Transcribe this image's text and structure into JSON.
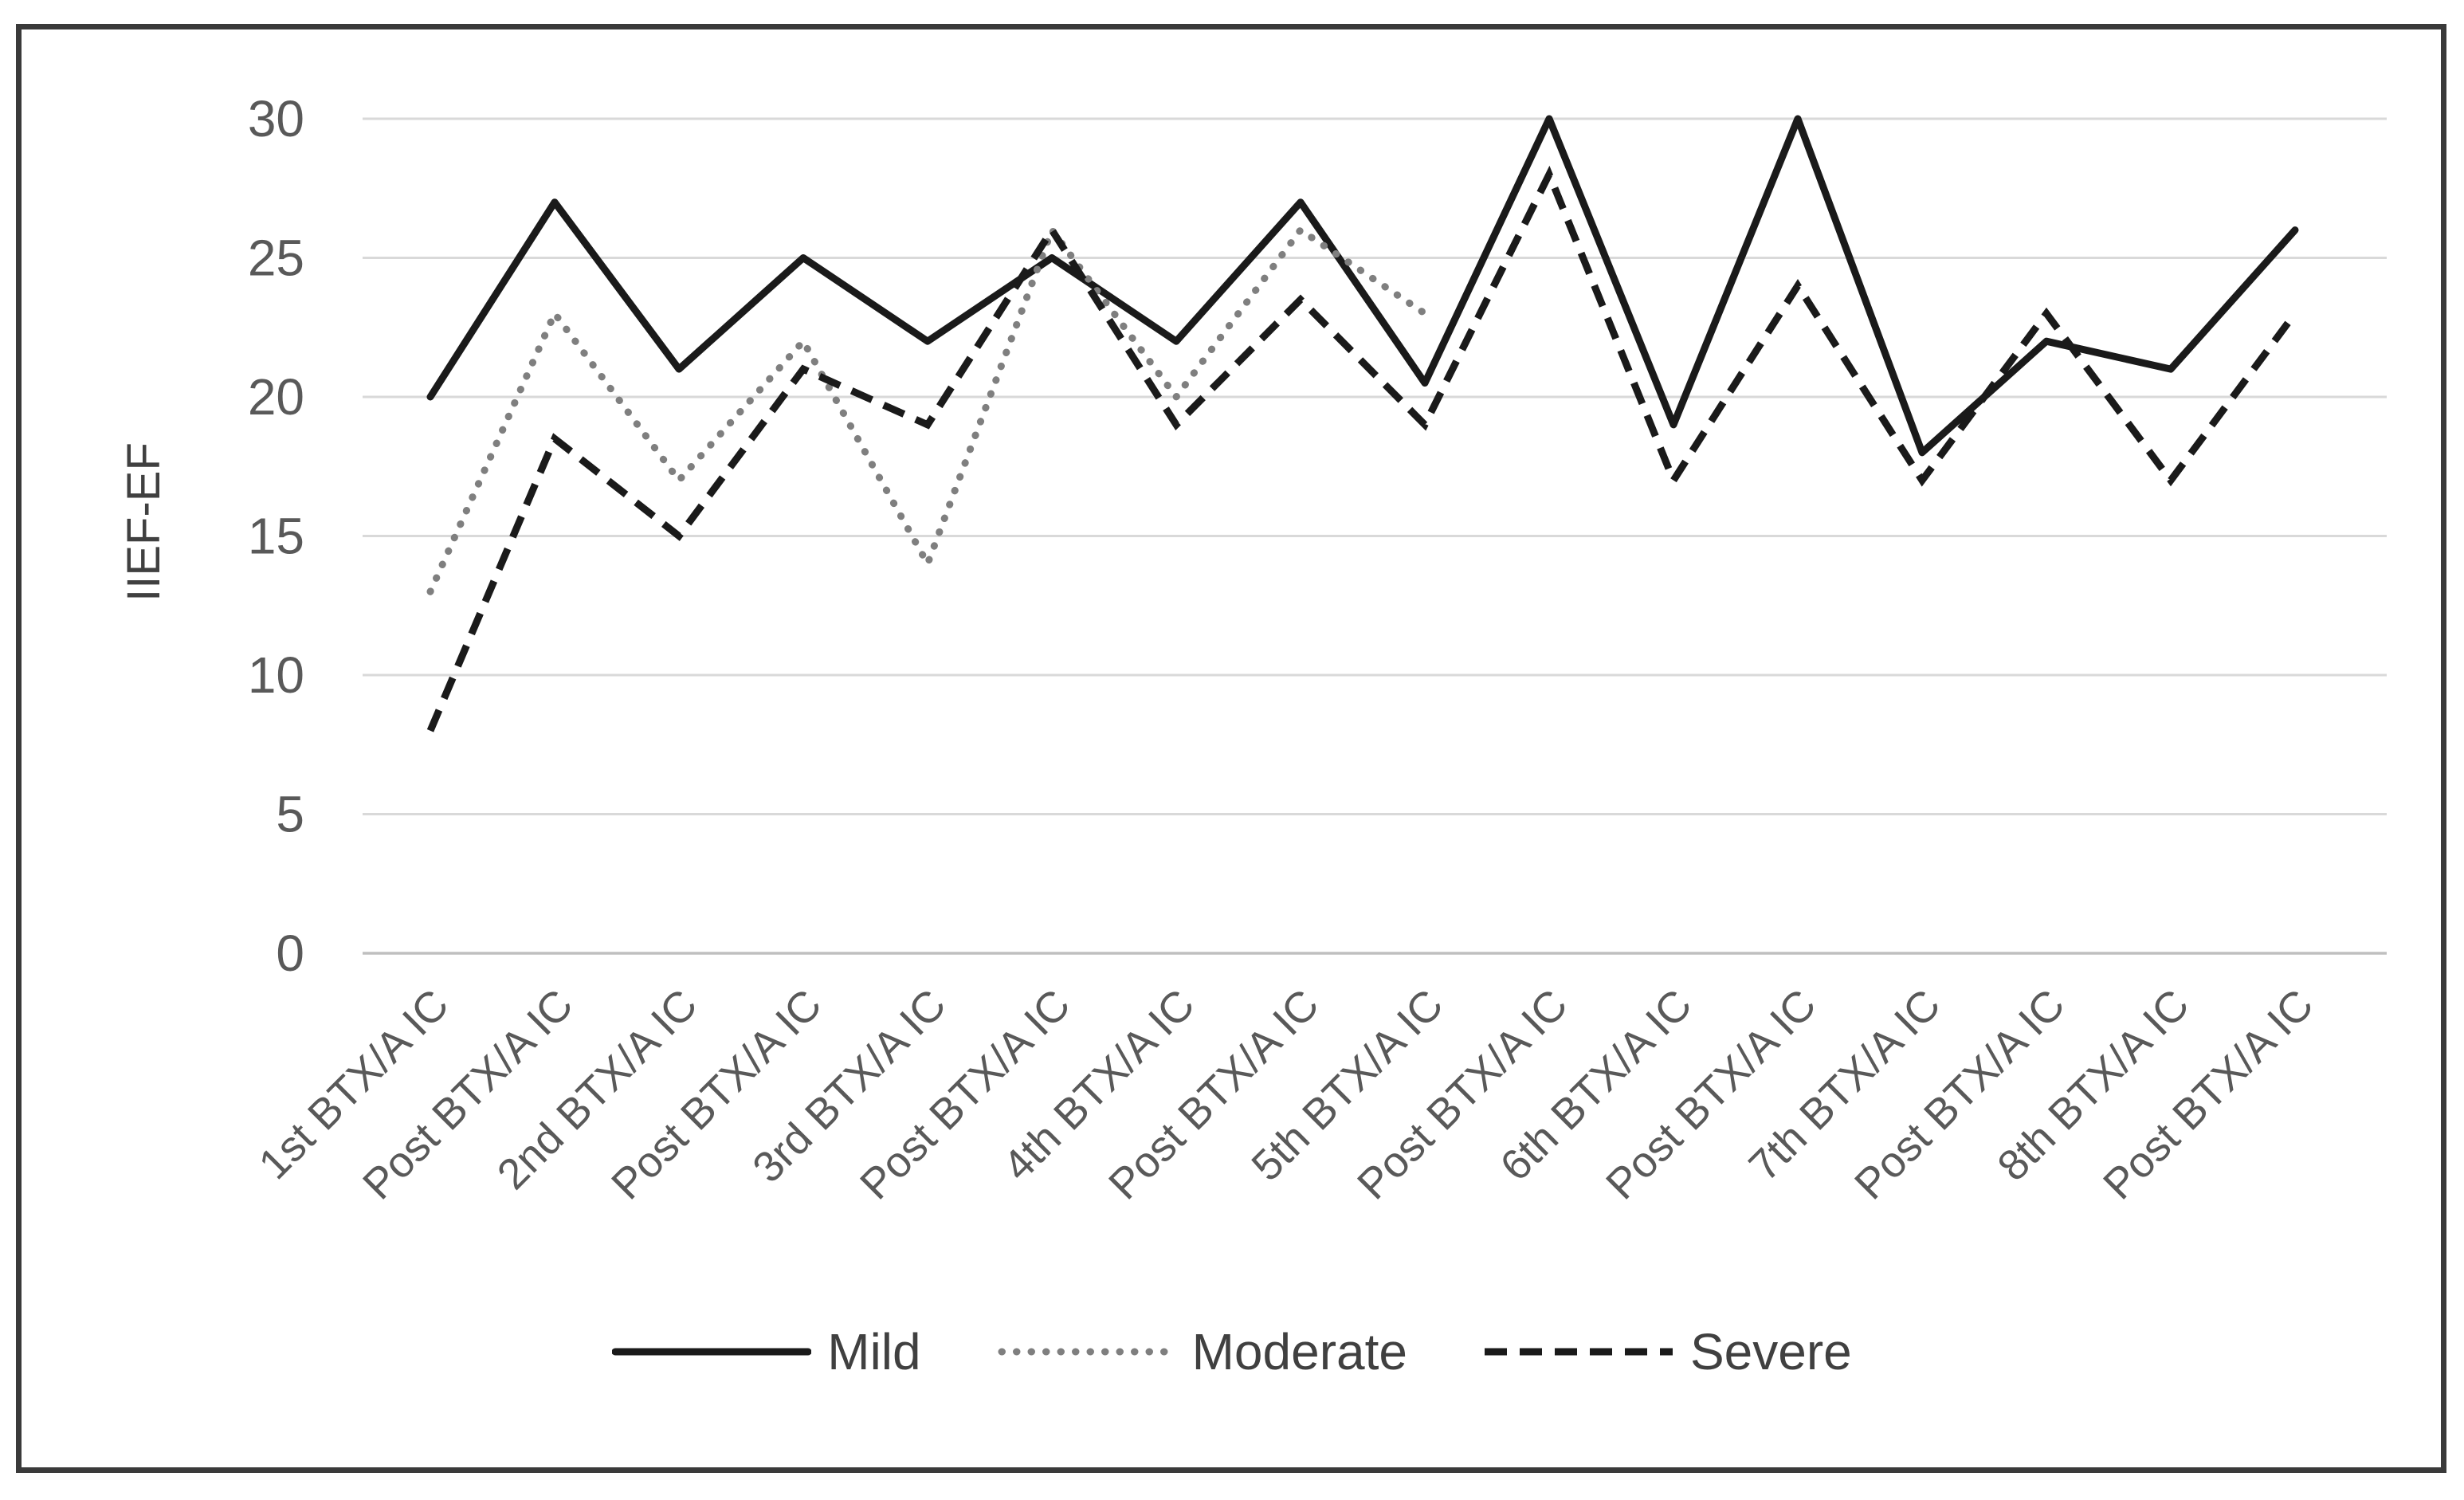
{
  "figure": {
    "background": "#ffffff",
    "border_color": "#3a3a3a",
    "grid_color": "#d9d9d9",
    "axis_label_color": "#595959"
  },
  "chart_data": {
    "type": "line",
    "title": "",
    "xlabel": "",
    "ylabel": "IIEF-EF",
    "ylim": [
      0,
      30
    ],
    "yticks": [
      0,
      5,
      10,
      15,
      20,
      25,
      30
    ],
    "grid": true,
    "legend_position": "bottom",
    "categories": [
      "1st BTX/A IC",
      "Post BTX/A IC",
      "2nd BTX/A IC",
      "Post BTX/A IC",
      "3rd BTX/A IC",
      "Post BTX/A IC",
      "4th BTX/A IC",
      "Post BTX/A IC",
      "5th BTX/A IC",
      "Post BTX/A IC",
      "6th BTX/A IC",
      "Post BTX/A IC",
      "7th BTX/A IC",
      "Post BTX/A IC",
      "8th BTX/A IC",
      "Post BTX/A IC"
    ],
    "series": [
      {
        "name": "Mild",
        "style": "solid",
        "color": "#1a1a1a",
        "values": [
          20,
          27,
          21,
          25,
          22,
          25,
          22,
          27,
          20.5,
          30,
          19,
          30,
          18,
          22,
          21,
          26
        ]
      },
      {
        "name": "Moderate",
        "style": "dotted",
        "color": "#7f7f7f",
        "values": [
          13,
          23,
          17,
          22,
          14,
          26,
          20,
          26,
          23
        ]
      },
      {
        "name": "Severe",
        "style": "dashed",
        "color": "#1a1a1a",
        "values": [
          8,
          18.5,
          15,
          21,
          19,
          26,
          19,
          23.5,
          19,
          28,
          17,
          24,
          17,
          23,
          17,
          23
        ]
      }
    ]
  }
}
